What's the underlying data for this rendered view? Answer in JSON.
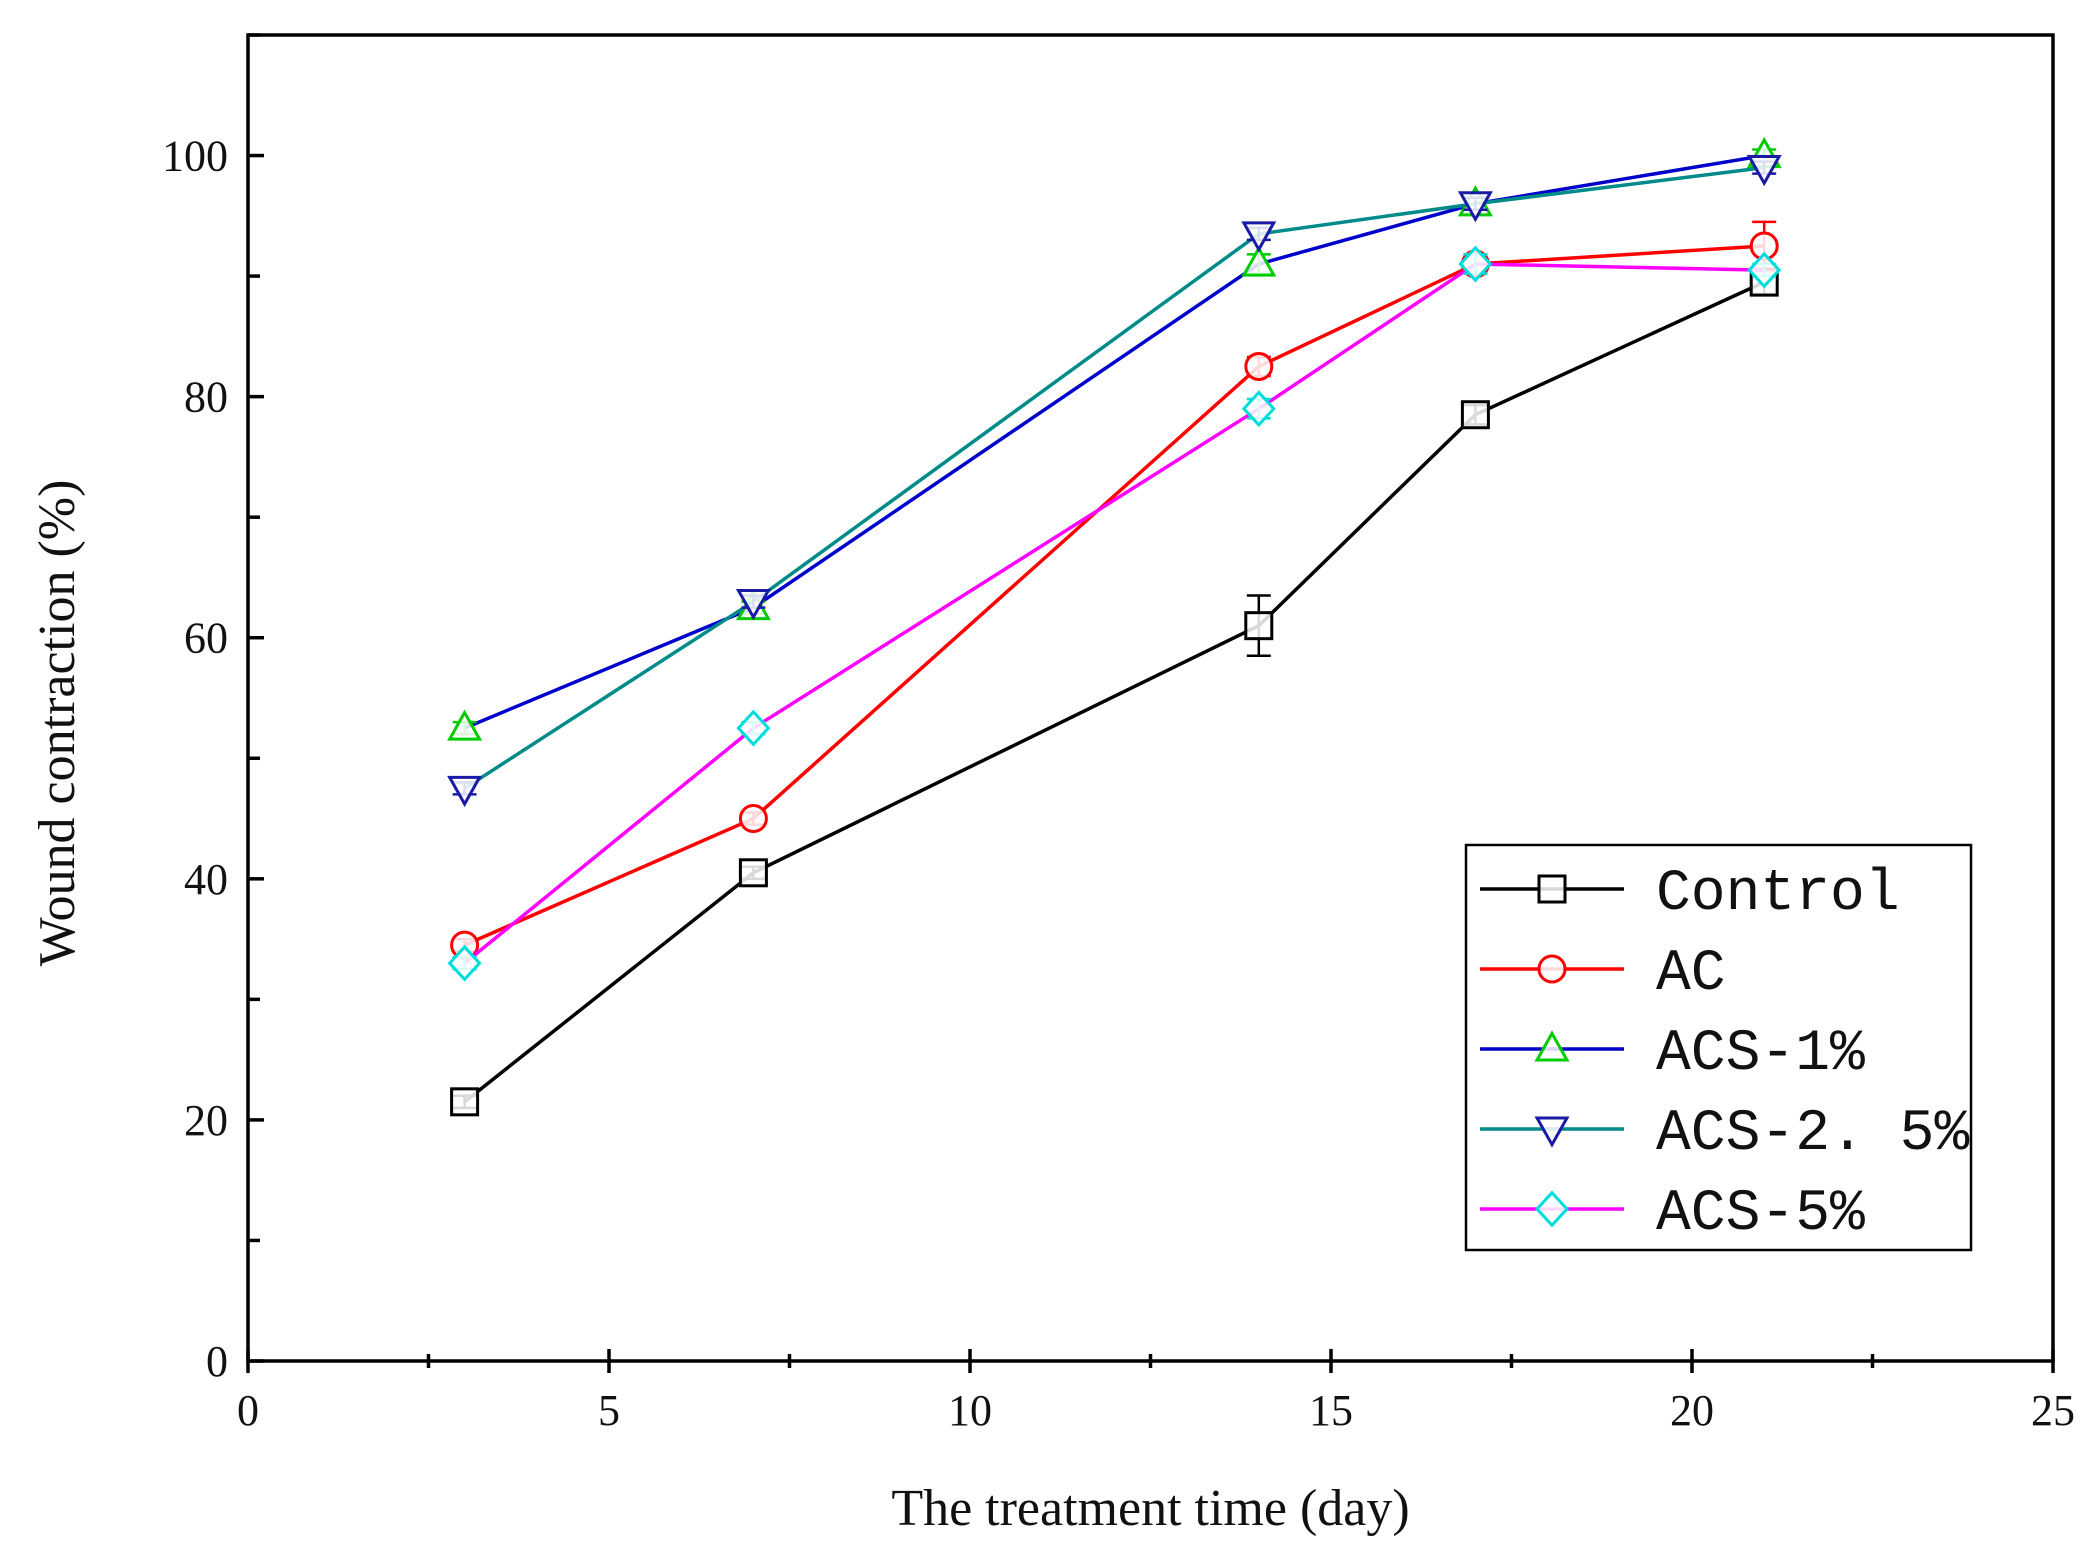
{
  "chart_data": {
    "type": "line",
    "title": "",
    "xlabel": "The treatment time (day)",
    "ylabel": "Wound contraction (%)",
    "xlim": [
      0,
      25
    ],
    "ylim": [
      0,
      110
    ],
    "xticks": [
      0,
      5,
      10,
      15,
      20,
      25
    ],
    "xtick_labels": [
      "0",
      "5",
      "10",
      "15",
      "20",
      "25"
    ],
    "yticks": [
      0,
      20,
      40,
      60,
      80,
      100
    ],
    "ytick_labels": [
      "0",
      "20",
      "40",
      "60",
      "80",
      "100"
    ],
    "x": [
      3,
      7,
      14,
      17,
      21
    ],
    "grid": false,
    "legend_position": "bottom-right",
    "series": [
      {
        "name": "Control",
        "marker": "square",
        "line_color": "#000000",
        "marker_color": "#000000",
        "values": [
          21.5,
          40.5,
          61,
          78.5,
          89.5
        ],
        "errors": [
          0.5,
          0.5,
          2.5,
          0.8,
          1
        ]
      },
      {
        "name": "AC",
        "marker": "circle",
        "line_color": "#ff0000",
        "marker_color": "#ff0000",
        "values": [
          34.5,
          45,
          82.5,
          91,
          92.5
        ],
        "errors": [
          0.5,
          0.5,
          0.8,
          0.8,
          2
        ]
      },
      {
        "name": "ACS-1%",
        "marker": "triangle-up",
        "line_color": "#0000cc",
        "marker_color": "#00cc00",
        "values": [
          52.5,
          62.5,
          91,
          96,
          100
        ],
        "errors": [
          0.5,
          0.5,
          0.8,
          0.5,
          0.5
        ]
      },
      {
        "name": "ACS-2. 5%",
        "marker": "triangle-down",
        "line_color": "#008b8b",
        "marker_color": "#1a1aa6",
        "values": [
          47.5,
          63,
          93.5,
          96,
          99
        ],
        "errors": [
          0.5,
          0.5,
          0.5,
          0.5,
          0.5
        ]
      },
      {
        "name": "ACS-5%",
        "marker": "diamond",
        "line_color": "#ff00ff",
        "marker_color": "#00dddd",
        "values": [
          33,
          52.5,
          79,
          91,
          90.5
        ],
        "errors": [
          0.5,
          0.5,
          0.8,
          0.8,
          0.5
        ]
      }
    ]
  }
}
